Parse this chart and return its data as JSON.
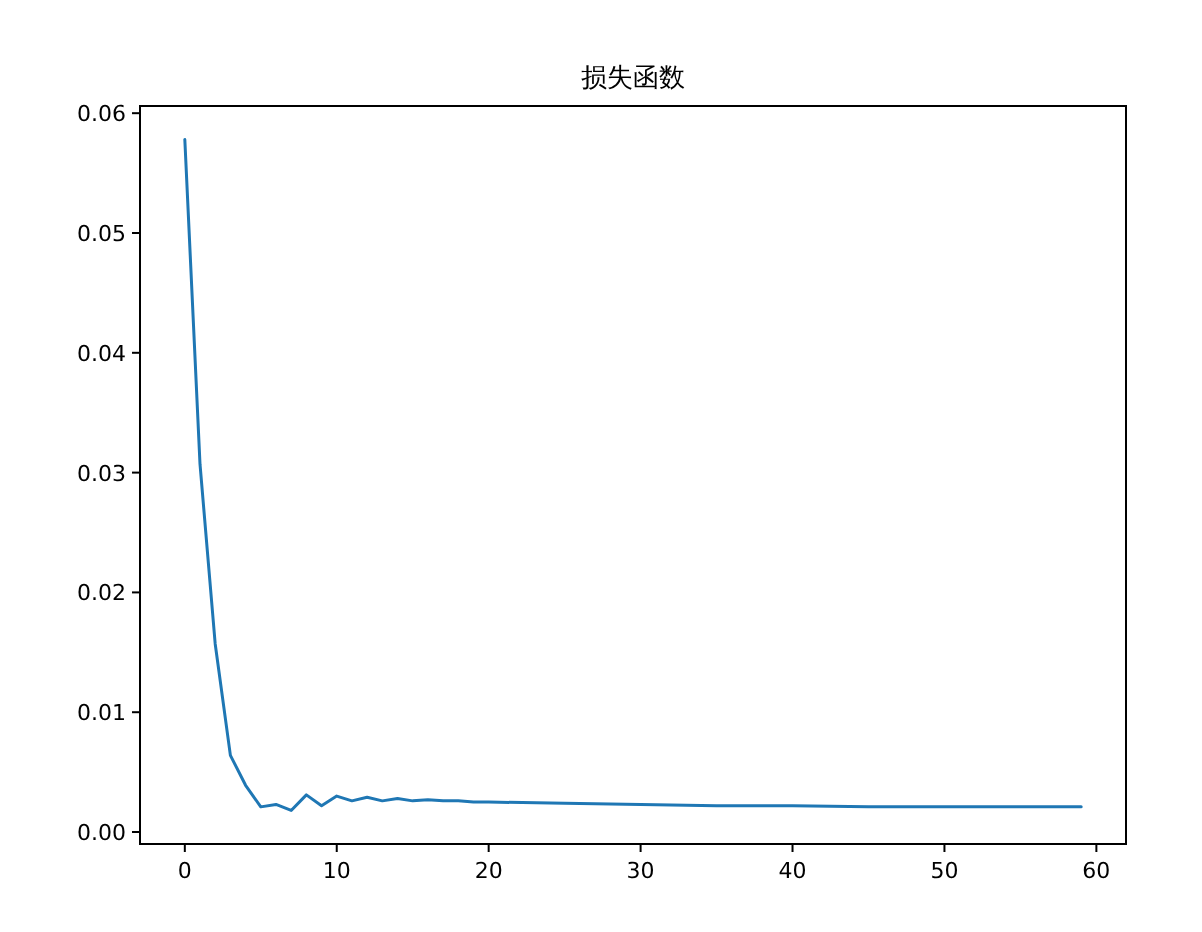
{
  "chart_data": {
    "type": "line",
    "title": "损失函数",
    "x": [
      0,
      1,
      2,
      3,
      4,
      5,
      6,
      7,
      8,
      9,
      10,
      11,
      12,
      13,
      14,
      15,
      16,
      17,
      18,
      19,
      20,
      25,
      30,
      35,
      40,
      45,
      50,
      55,
      59
    ],
    "series": [
      {
        "color": "#1f77b4",
        "values": [
          0.0578,
          0.0307,
          0.0157,
          0.0064,
          0.0039,
          0.0021,
          0.0023,
          0.0018,
          0.0031,
          0.0022,
          0.003,
          0.0026,
          0.0029,
          0.0026,
          0.0028,
          0.0026,
          0.0027,
          0.0026,
          0.0026,
          0.0025,
          0.0025,
          0.0024,
          0.0023,
          0.0022,
          0.0022,
          0.0021,
          0.0021,
          0.0021,
          0.0021
        ]
      }
    ],
    "xlim": [
      -2.95,
      61.95
    ],
    "xticks": [
      0,
      10,
      20,
      30,
      40,
      50,
      60
    ],
    "ylim": [
      -0.001,
      0.0606
    ],
    "yticks": [
      {
        "value": 0,
        "label": "0.00"
      },
      {
        "value": 0.01,
        "label": "0.01"
      },
      {
        "value": 0.02,
        "label": "0.02"
      },
      {
        "value": 0.03,
        "label": "0.03"
      },
      {
        "value": 0.04,
        "label": "0.04"
      },
      {
        "value": 0.05,
        "label": "0.05"
      },
      {
        "value": 0.06,
        "label": "0.06"
      }
    ],
    "grid": false
  }
}
